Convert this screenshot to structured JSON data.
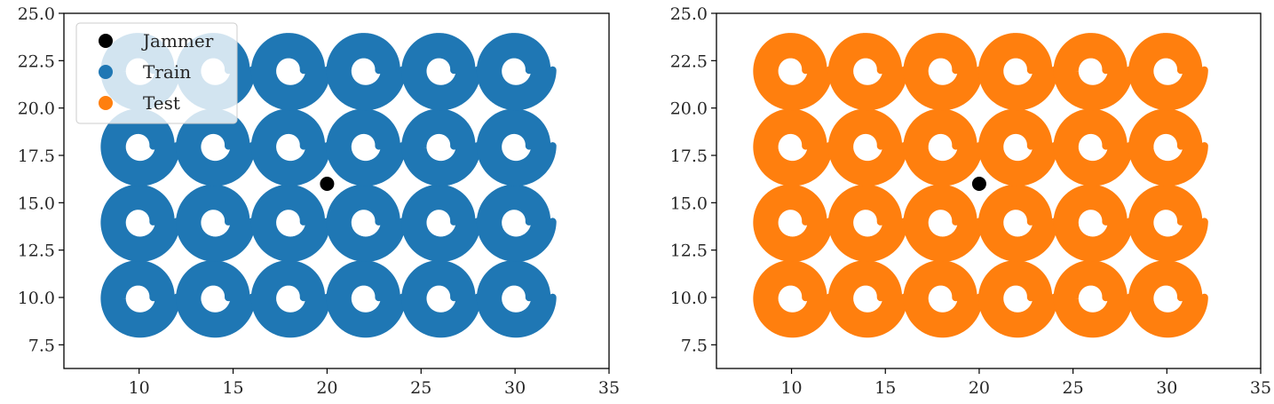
{
  "chart_data": [
    {
      "type": "scatter",
      "title": "",
      "xlabel": "",
      "ylabel": "",
      "xlim": [
        6,
        35
      ],
      "ylim": [
        6.25,
        25
      ],
      "xticks": [
        "10",
        "15",
        "20",
        "25",
        "30",
        "35"
      ],
      "yticks": [
        "7.5",
        "10.0",
        "12.5",
        "15.0",
        "17.5",
        "20.0",
        "22.5",
        "25.0"
      ],
      "grid": false,
      "legend": {
        "position": "top-left",
        "entries": [
          {
            "label": "Jammer",
            "color": "#000000"
          },
          {
            "label": "Train",
            "color": "#1f77b4"
          },
          {
            "label": "Test",
            "color": "#ff7f0e"
          }
        ]
      },
      "jammer": {
        "name": "Jammer",
        "x": 20,
        "y": 16,
        "color": "#000000"
      },
      "trajectory_series": {
        "name": "Train",
        "color": "#1f77b4",
        "centers_x": [
          10,
          14,
          18,
          22,
          26,
          30
        ],
        "centers_y": [
          10,
          14,
          18,
          22
        ],
        "pattern": "spiral",
        "radius_min": 0.75,
        "radius_max": 2.0,
        "turns": 4
      }
    },
    {
      "type": "scatter",
      "title": "",
      "xlabel": "",
      "ylabel": "",
      "xlim": [
        6,
        35
      ],
      "ylim": [
        6.25,
        25
      ],
      "xticks": [
        "10",
        "15",
        "20",
        "25",
        "30",
        "35"
      ],
      "yticks": [
        "7.5",
        "10.0",
        "12.5",
        "15.0",
        "17.5",
        "20.0",
        "22.5",
        "25.0"
      ],
      "grid": false,
      "jammer": {
        "name": "Jammer",
        "x": 20,
        "y": 16,
        "color": "#000000"
      },
      "trajectory_series": {
        "name": "Test",
        "color": "#ff7f0e",
        "centers_x": [
          10,
          14,
          18,
          22,
          26,
          30
        ],
        "centers_y": [
          10,
          14,
          18,
          22
        ],
        "pattern": "spiral",
        "radius_min": 0.75,
        "radius_max": 2.0,
        "turns": 4
      }
    }
  ]
}
